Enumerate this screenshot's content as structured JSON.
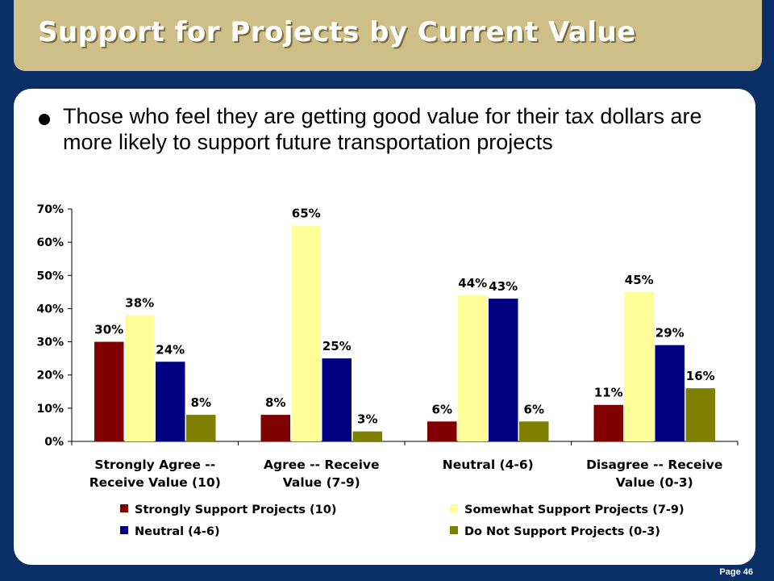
{
  "slide": {
    "title": "Support for Projects by Current Value",
    "bullet": "Those who feel they are getting good value for their tax dollars are more likely to support future transportation projects",
    "page": "Page 46"
  },
  "chart_data": {
    "type": "bar",
    "categories": [
      [
        "Strongly Agree --",
        "Receive Value (10)"
      ],
      [
        "Agree -- Receive",
        "Value (7-9)"
      ],
      [
        "Neutral (4-6)"
      ],
      [
        "Disagree -- Receive",
        "Value (0-3)"
      ]
    ],
    "series": [
      {
        "name": "Strongly Support Projects (10)",
        "color": "#800000",
        "values": [
          30,
          8,
          6,
          11
        ]
      },
      {
        "name": "Somewhat Support Projects (7-9)",
        "color": "#ffff99",
        "values": [
          38,
          65,
          44,
          45
        ]
      },
      {
        "name": "Neutral (4-6)",
        "color": "#000080",
        "values": [
          24,
          25,
          43,
          29
        ]
      },
      {
        "name": "Do Not Support Projects (0-3)",
        "color": "#808000",
        "values": [
          8,
          3,
          6,
          16
        ]
      }
    ],
    "ylim": [
      0,
      70
    ],
    "yticks": [
      "0%",
      "10%",
      "20%",
      "30%",
      "40%",
      "50%",
      "60%",
      "70%"
    ],
    "data_labels": [
      [
        "30%",
        "8%",
        "6%",
        "11%"
      ],
      [
        "38%",
        "65%",
        "44%",
        "45%"
      ],
      [
        "24%",
        "25%",
        "43%",
        "29%"
      ],
      [
        "8%",
        "3%",
        "6%",
        "16%"
      ]
    ],
    "legend": "bottom",
    "grid": false
  }
}
